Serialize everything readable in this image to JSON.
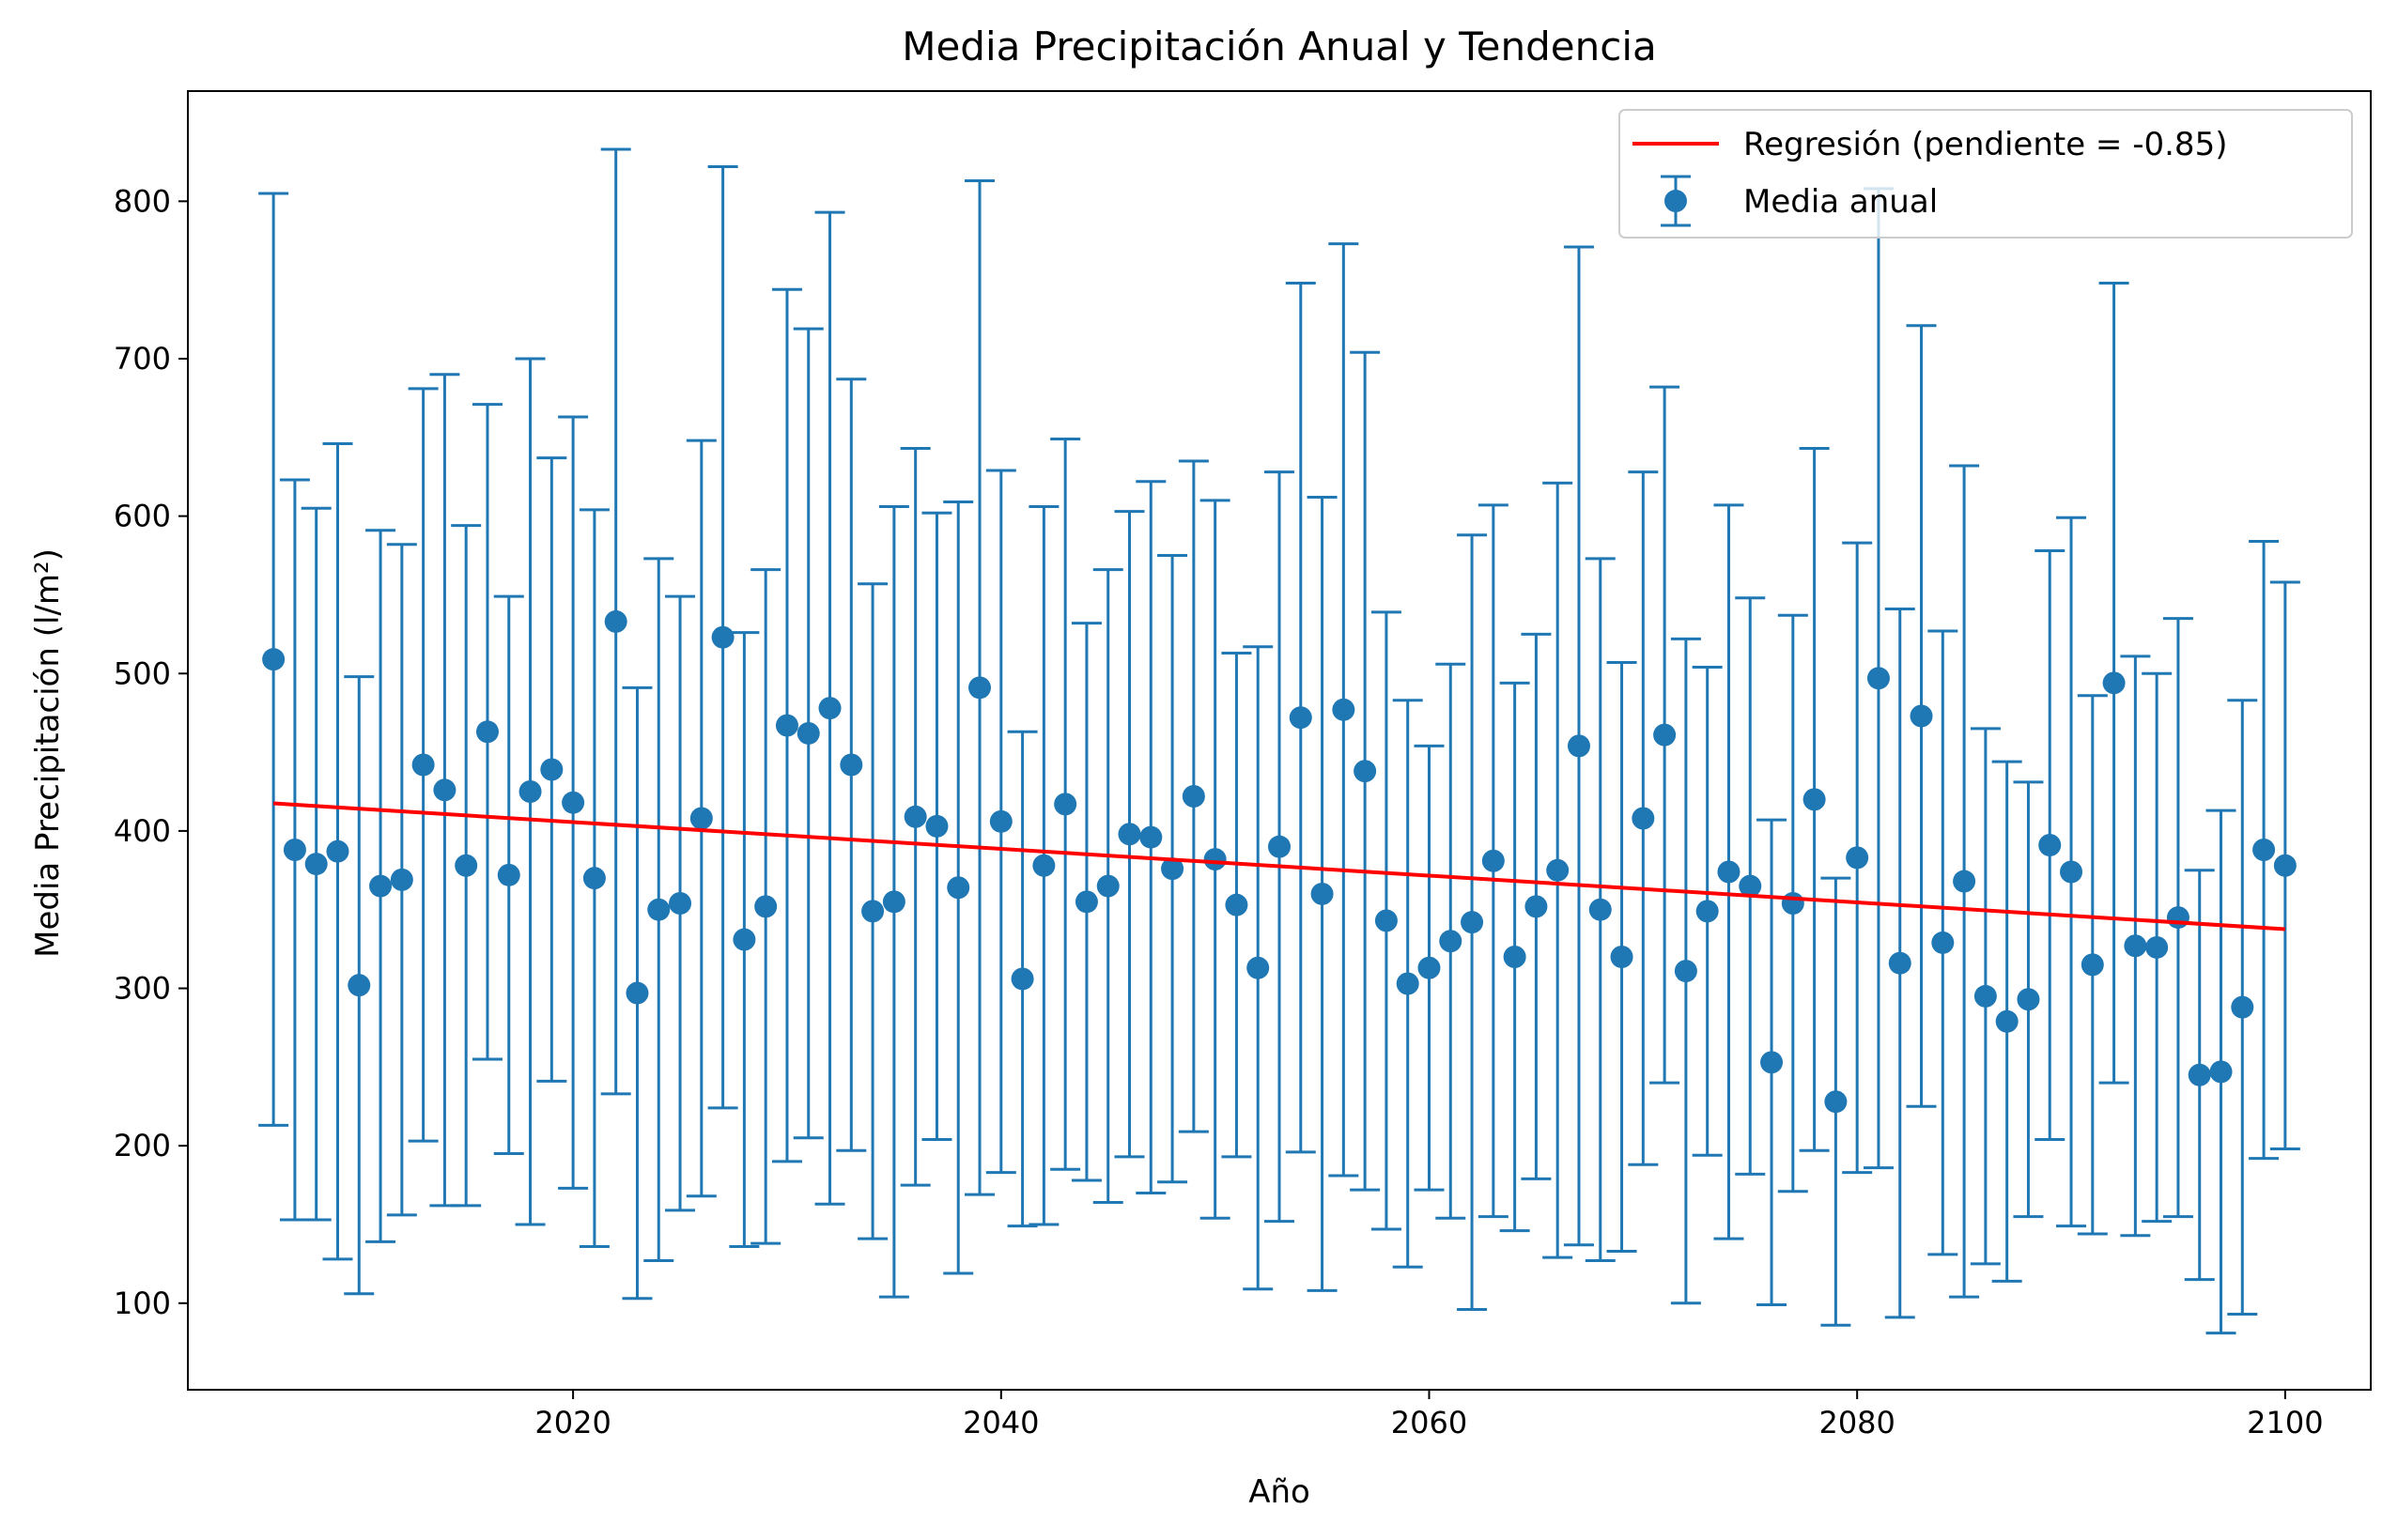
{
  "chart_data": {
    "type": "scatter",
    "title": "Media Precipitación Anual y Tendencia",
    "xlabel": "Año",
    "ylabel": "Media Precipitación (l/m²)",
    "xlim": [
      2002,
      2104
    ],
    "ylim": [
      45,
      870
    ],
    "xticks": [
      2020,
      2040,
      2060,
      2080,
      2100
    ],
    "yticks": [
      100,
      200,
      300,
      400,
      500,
      600,
      700,
      800
    ],
    "grid": false,
    "legend_position": "top-right",
    "colors": {
      "series": "#1f77b4",
      "regression": "#ff0000"
    },
    "series": [
      {
        "name": "Media anual",
        "kind": "errorbar",
        "x": [
          2006,
          2007,
          2008,
          2009,
          2010,
          2011,
          2012,
          2013,
          2014,
          2015,
          2016,
          2017,
          2018,
          2019,
          2020,
          2021,
          2022,
          2023,
          2024,
          2025,
          2026,
          2027,
          2028,
          2029,
          2030,
          2031,
          2032,
          2033,
          2034,
          2035,
          2036,
          2037,
          2038,
          2039,
          2040,
          2041,
          2042,
          2043,
          2044,
          2045,
          2046,
          2047,
          2048,
          2049,
          2050,
          2051,
          2052,
          2053,
          2054,
          2055,
          2056,
          2057,
          2058,
          2059,
          2060,
          2061,
          2062,
          2063,
          2064,
          2065,
          2066,
          2067,
          2068,
          2069,
          2070,
          2071,
          2072,
          2073,
          2074,
          2075,
          2076,
          2077,
          2078,
          2079,
          2080,
          2081,
          2082,
          2083,
          2084,
          2085,
          2086,
          2087,
          2088,
          2089,
          2090,
          2091,
          2092,
          2093,
          2094,
          2095,
          2096,
          2097,
          2098,
          2099,
          2100
        ],
        "y": [
          509,
          388,
          379,
          387,
          302,
          365,
          369,
          442,
          426,
          378,
          463,
          372,
          425,
          439,
          418,
          370,
          533,
          297,
          350,
          354,
          408,
          523,
          331,
          352,
          467,
          462,
          478,
          442,
          349,
          355,
          409,
          403,
          364,
          491,
          406,
          306,
          378,
          417,
          355,
          365,
          398,
          396,
          376,
          422,
          382,
          353,
          313,
          390,
          472,
          360,
          477,
          438,
          343,
          303,
          313,
          330,
          342,
          381,
          320,
          352,
          375,
          454,
          350,
          320,
          408,
          461,
          311,
          349,
          374,
          365,
          253,
          354,
          420,
          228,
          383,
          497,
          316,
          473,
          329,
          368,
          295,
          279,
          293,
          391,
          374,
          315,
          494,
          327,
          326,
          345,
          245,
          247,
          288,
          388,
          378
        ],
        "yerr": [
          296,
          235,
          226,
          259,
          196,
          226,
          213,
          239,
          264,
          216,
          208,
          177,
          275,
          198,
          245,
          234,
          300,
          194,
          223,
          195,
          240,
          299,
          195,
          214,
          277,
          257,
          315,
          245,
          208,
          251,
          234,
          199,
          245,
          322,
          223,
          157,
          228,
          232,
          177,
          201,
          205,
          226,
          199,
          213,
          228,
          160,
          204,
          238,
          276,
          252,
          296,
          266,
          196,
          180,
          141,
          176,
          246,
          226,
          174,
          173,
          246,
          317,
          223,
          187,
          220,
          221,
          211,
          155,
          233,
          183,
          154,
          183,
          223,
          142,
          200,
          311,
          225,
          248,
          198,
          264,
          170,
          165,
          138,
          187,
          225,
          171,
          254,
          184,
          174,
          190,
          130,
          166,
          195,
          196,
          180
        ]
      },
      {
        "name": "Regresión (pendiente = -0.85)",
        "kind": "line",
        "x": [
          2006,
          2100
        ],
        "y": [
          417.5,
          337.6
        ]
      }
    ]
  }
}
